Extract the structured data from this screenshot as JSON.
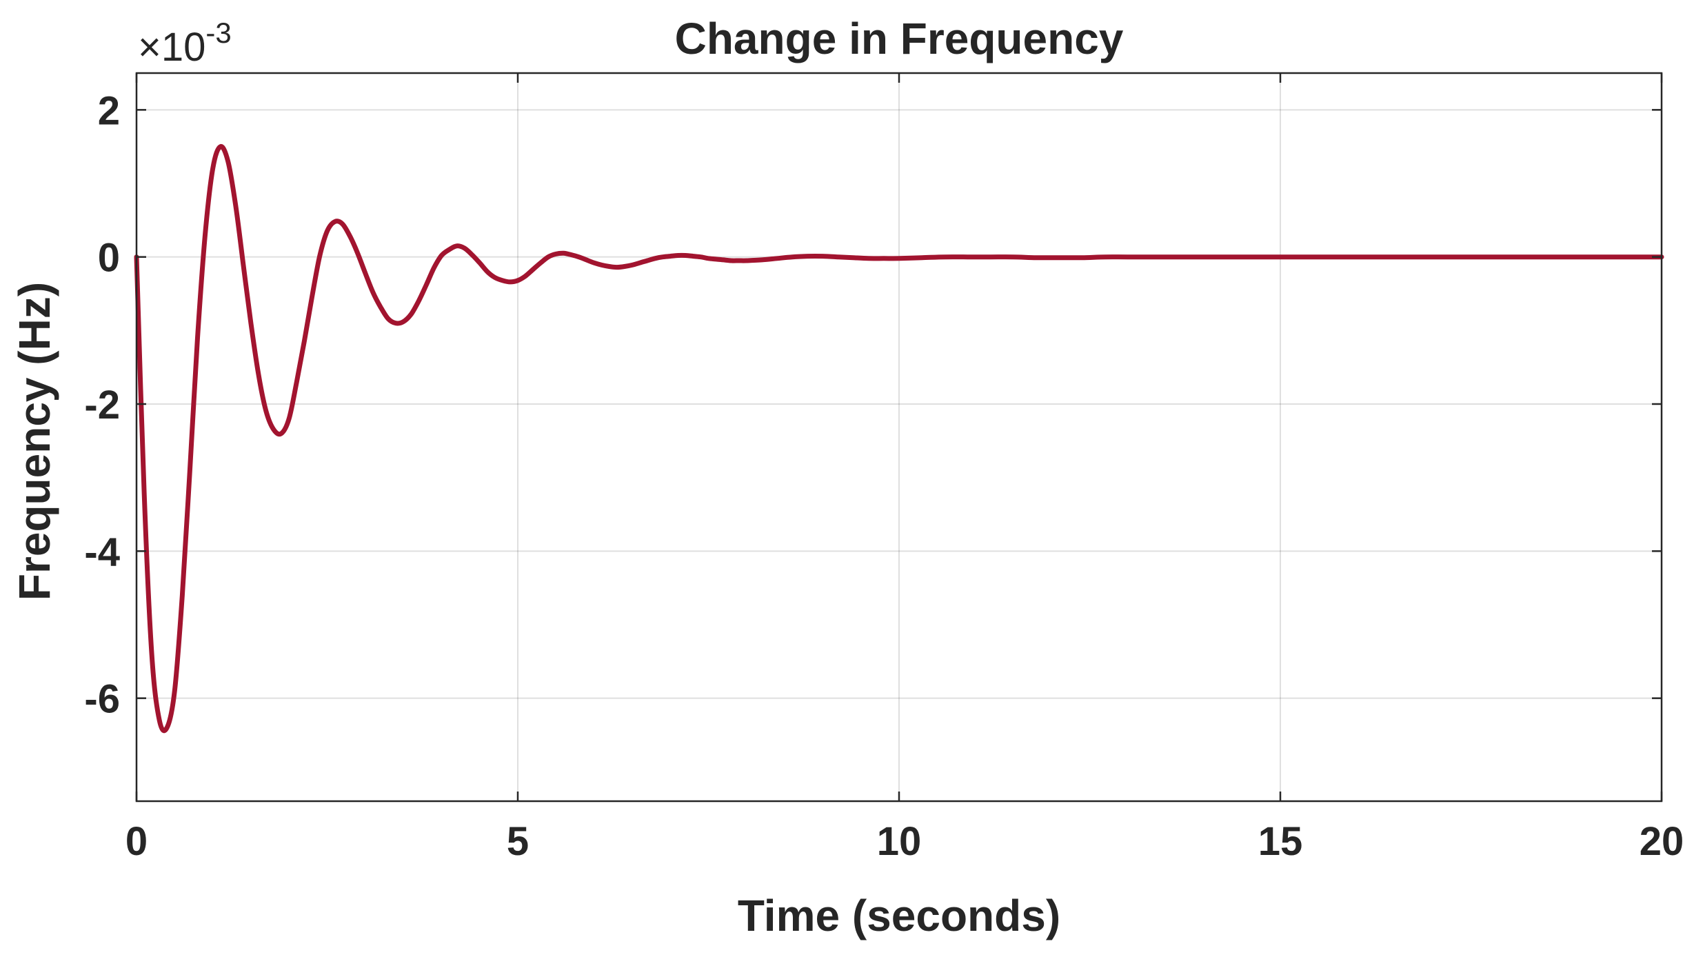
{
  "chart_data": {
    "type": "line",
    "title": "Change in Frequency",
    "xlabel": "Time (seconds)",
    "ylabel": "Frequency (Hz)",
    "y_exponent": {
      "base": "10",
      "power": "-3"
    },
    "xlim": [
      0,
      20
    ],
    "ylim": [
      -7.4,
      2.5
    ],
    "xticks": [
      0,
      5,
      10,
      15,
      20
    ],
    "yticks": [
      2,
      0,
      -2,
      -4,
      -6
    ],
    "xtick_labels": [
      "0",
      "5",
      "10",
      "15",
      "20"
    ],
    "ytick_labels": [
      "2",
      "0",
      "-2",
      "-4",
      "-6"
    ],
    "grid": true,
    "series": [
      {
        "color": "#A2142F",
        "x": [
          0,
          0.1,
          0.2,
          0.3,
          0.4,
          0.5,
          0.6,
          0.7,
          0.8,
          0.9,
          1.0,
          1.1,
          1.2,
          1.3,
          1.4,
          1.5,
          1.6,
          1.7,
          1.8,
          1.9,
          2.0,
          2.1,
          2.2,
          2.3,
          2.4,
          2.5,
          2.6,
          2.7,
          2.8,
          2.9,
          3.0,
          3.1,
          3.2,
          3.3,
          3.4,
          3.5,
          3.6,
          3.7,
          3.8,
          3.9,
          4.0,
          4.1,
          4.2,
          4.3,
          4.4,
          4.5,
          4.6,
          4.7,
          4.8,
          4.9,
          5.0,
          5.1,
          5.2,
          5.3,
          5.4,
          5.5,
          5.6,
          5.7,
          5.8,
          5.9,
          6.0,
          6.1,
          6.2,
          6.3,
          6.4,
          6.5,
          6.6,
          6.7,
          6.8,
          6.9,
          7.0,
          7.1,
          7.2,
          7.3,
          7.4,
          7.5,
          7.6,
          7.7,
          7.8,
          7.9,
          8.0,
          8.2,
          8.4,
          8.6,
          8.8,
          9.0,
          9.2,
          9.4,
          9.6,
          9.8,
          10.0,
          10.3,
          10.6,
          10.9,
          11.2,
          11.5,
          11.8,
          12.1,
          12.4,
          12.7,
          13.0,
          13.5,
          14.0,
          14.5,
          15.0,
          16.0,
          17.0,
          18.0,
          19.0,
          20.0
        ],
        "y": [
          0.0,
          -3.2,
          -5.4,
          -6.3,
          -6.4,
          -5.9,
          -4.6,
          -2.9,
          -1.1,
          0.3,
          1.2,
          1.5,
          1.3,
          0.7,
          -0.1,
          -0.9,
          -1.6,
          -2.1,
          -2.35,
          -2.4,
          -2.2,
          -1.7,
          -1.15,
          -0.55,
          0.0,
          0.35,
          0.48,
          0.45,
          0.28,
          0.05,
          -0.22,
          -0.48,
          -0.68,
          -0.84,
          -0.9,
          -0.88,
          -0.78,
          -0.6,
          -0.38,
          -0.15,
          0.02,
          0.1,
          0.15,
          0.12,
          0.03,
          -0.08,
          -0.2,
          -0.28,
          -0.32,
          -0.34,
          -0.32,
          -0.26,
          -0.17,
          -0.08,
          0.0,
          0.04,
          0.05,
          0.03,
          0.0,
          -0.04,
          -0.08,
          -0.11,
          -0.13,
          -0.14,
          -0.13,
          -0.11,
          -0.08,
          -0.05,
          -0.02,
          0.0,
          0.01,
          0.02,
          0.02,
          0.01,
          0.0,
          -0.02,
          -0.03,
          -0.04,
          -0.05,
          -0.05,
          -0.05,
          -0.04,
          -0.02,
          0.0,
          0.01,
          0.01,
          0.0,
          -0.01,
          -0.02,
          -0.02,
          -0.02,
          -0.01,
          0.0,
          0.0,
          0.0,
          0.0,
          -0.01,
          -0.01,
          -0.01,
          0.0,
          0.0,
          0.0,
          0.0,
          0.0,
          0.0,
          0.0,
          0.0,
          0.0,
          0.0,
          0.0
        ]
      }
    ]
  }
}
